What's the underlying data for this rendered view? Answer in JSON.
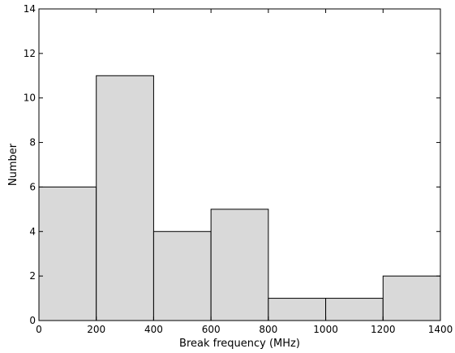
{
  "chart_data": {
    "type": "bar",
    "subtype": "histogram",
    "bin_edges": [
      0,
      200,
      400,
      600,
      800,
      1000,
      1200,
      1400
    ],
    "values": [
      6,
      11,
      4,
      5,
      1,
      1,
      2
    ],
    "xlabel": "Break frequency (MHz)",
    "ylabel": "Number",
    "xlim": [
      0,
      1400
    ],
    "ylim": [
      0,
      14
    ],
    "x_ticks": [
      0,
      200,
      400,
      600,
      800,
      1000,
      1200,
      1400
    ],
    "y_ticks": [
      0,
      2,
      4,
      6,
      8,
      10,
      12,
      14
    ],
    "grid": false,
    "bar_color": "#d9d9d9",
    "edge_color": "#000000"
  }
}
